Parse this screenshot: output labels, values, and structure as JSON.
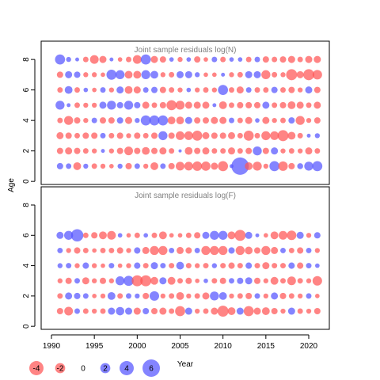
{
  "chart_data": {
    "type": "scatter",
    "ylabel": "Age",
    "xlabel": "Year",
    "x_ticks": [
      1990,
      1995,
      2000,
      2005,
      2010,
      2015,
      2020
    ],
    "xlim": [
      1988.8,
      2022.4
    ],
    "colors": {
      "positive": "#5555ff",
      "negative": "#ff5555"
    },
    "panels": [
      {
        "title": "Joint sample residuals log(N)",
        "ages": [
          1,
          2,
          3,
          4,
          5,
          6,
          7,
          8
        ],
        "y_ticks": [
          0,
          2,
          4,
          6,
          8
        ],
        "ylim": [
          -0.2,
          9.2
        ],
        "years": [
          1991,
          1992,
          1993,
          1994,
          1995,
          1996,
          1997,
          1998,
          1999,
          2000,
          2001,
          2002,
          2003,
          2004,
          2005,
          2006,
          2007,
          2008,
          2009,
          2010,
          2011,
          2012,
          2013,
          2014,
          2015,
          2016,
          2017,
          2018,
          2019,
          2020,
          2021
        ],
        "residuals": [
          [
            0.8,
            0.6,
            -1.2,
            0.5,
            -0.6,
            -0.5,
            -0.4,
            0.5,
            -0.8,
            0.6,
            -0.5,
            -1.2,
            0.6,
            -0.8,
            -1.5,
            -1.5,
            -1.8,
            -1.7,
            -1.0,
            -2.0,
            0.3,
            6.0,
            -1.2,
            -1.6,
            -0.5,
            2.0,
            -1.8,
            -0.8,
            0.7,
            1.6,
            2.0
          ],
          [
            -0.8,
            -1.0,
            -0.8,
            -0.6,
            -0.5,
            0.3,
            -0.5,
            -0.8,
            -1.5,
            -0.8,
            -1.2,
            -0.8,
            -1.0,
            -0.6,
            0.2,
            -1.2,
            -0.8,
            -1.0,
            -0.6,
            -0.6,
            -1.0,
            -0.6,
            -0.8,
            1.6,
            -0.8,
            1.0,
            -0.5,
            -0.6,
            -0.5,
            -1.0,
            -0.6
          ],
          [
            -1.0,
            -0.8,
            -0.6,
            -0.8,
            -0.8,
            0.6,
            -0.6,
            -0.8,
            -0.5,
            -0.8,
            -0.6,
            -0.8,
            1.6,
            -0.8,
            -1.5,
            -1.5,
            -2.0,
            -1.0,
            -0.8,
            -0.8,
            -1.0,
            -0.6,
            -2.0,
            -0.6,
            -1.6,
            -1.5,
            -2.4,
            -1.2,
            -0.6,
            0.3,
            0.5
          ],
          [
            -0.6,
            -1.6,
            -0.8,
            -0.5,
            0.6,
            -0.8,
            -0.8,
            0.8,
            -1.0,
            0.5,
            2.0,
            2.0,
            2.0,
            -1.2,
            -1.2,
            1.0,
            -0.8,
            -0.8,
            -1.0,
            -1.0,
            0.6,
            -0.6,
            -1.0,
            0.4,
            -1.0,
            -0.5,
            -0.6,
            0.8,
            -1.6,
            -0.5,
            -0.8
          ],
          [
            1.6,
            0.3,
            -0.6,
            -0.5,
            -0.5,
            1.0,
            1.6,
            0.8,
            1.6,
            0.8,
            -1.0,
            -0.6,
            -0.8,
            -2.0,
            -1.6,
            -1.0,
            -1.0,
            -1.0,
            0.3,
            -1.2,
            -0.6,
            -0.8,
            -0.8,
            -0.8,
            1.0,
            -0.6,
            -0.8,
            -1.2,
            -1.0,
            -0.6,
            -1.0
          ],
          [
            -0.6,
            1.2,
            -0.6,
            0.4,
            -0.4,
            0.6,
            -0.5,
            1.0,
            -1.2,
            -1.0,
            0.6,
            0.8,
            -0.8,
            -0.6,
            -0.5,
            0.4,
            -0.5,
            -0.6,
            -0.5,
            2.0,
            -0.6,
            -1.0,
            0.6,
            -0.6,
            -0.6,
            0.8,
            -0.6,
            -0.8,
            -0.5,
            1.0,
            -0.8
          ],
          [
            -0.8,
            1.0,
            0.8,
            -0.5,
            -0.5,
            -0.4,
            2.0,
            1.6,
            -1.2,
            -1.2,
            1.6,
            1.2,
            -0.5,
            -0.6,
            1.0,
            1.0,
            0.5,
            -0.4,
            -0.4,
            0.3,
            -0.5,
            -0.6,
            1.0,
            1.0,
            -1.6,
            -0.6,
            -0.5,
            -2.4,
            -1.0,
            -2.4,
            -1.8
          ],
          [
            2.0,
            0.5,
            0.3,
            -0.6,
            -1.5,
            -1.0,
            0.3,
            -0.4,
            -0.6,
            -1.5,
            2.0,
            -1.0,
            -0.8,
            0.4,
            -0.5,
            0.4,
            -0.8,
            -0.4,
            0.6,
            -0.6,
            0.4,
            0.4,
            -0.6,
            0.6,
            -0.8,
            -0.6,
            -0.8,
            -1.0,
            -0.6,
            -1.0,
            -1.0
          ]
        ]
      },
      {
        "title": "Joint sample residuals log(F)",
        "ages": [
          1,
          2,
          3,
          4,
          5,
          6
        ],
        "y_ticks": [
          0,
          2,
          4,
          6,
          8
        ],
        "ylim": [
          -0.2,
          9.2
        ],
        "years": [
          1991,
          1992,
          1993,
          1994,
          1995,
          1996,
          1997,
          1998,
          1999,
          2000,
          2001,
          2002,
          2003,
          2004,
          2005,
          2006,
          2007,
          2008,
          2009,
          2010,
          2011,
          2012,
          2013,
          2014,
          2015,
          2016,
          2017,
          2018,
          2019,
          2020,
          2021
        ],
        "residuals": [
          [
            -0.8,
            -1.5,
            0.6,
            -0.6,
            -0.5,
            -0.6,
            1.0,
            1.4,
            1.0,
            -1.0,
            0.8,
            -0.8,
            -1.0,
            -0.6,
            -2.0,
            1.0,
            -0.5,
            -0.6,
            -1.0,
            -2.4,
            -1.2,
            1.0,
            -2.0,
            -1.0,
            -1.2,
            -0.8,
            -0.5,
            1.0,
            -0.6,
            -0.5,
            -0.8
          ],
          [
            -0.6,
            1.0,
            0.8,
            0.6,
            -0.4,
            -0.5,
            1.2,
            -0.6,
            0.6,
            0.5,
            -0.8,
            1.8,
            -0.5,
            -0.6,
            -1.2,
            -0.5,
            -0.6,
            -1.0,
            1.6,
            1.2,
            -0.5,
            -0.6,
            -0.8,
            0.6,
            -0.5,
            1.0,
            -0.8,
            -0.6,
            -0.5,
            0.6,
            -0.4
          ],
          [
            -0.5,
            -0.8,
            0.6,
            -1.0,
            -0.5,
            -0.8,
            -0.5,
            1.6,
            2.0,
            -2.4,
            -2.4,
            -1.2,
            1.0,
            -1.2,
            -0.6,
            -0.8,
            -0.4,
            0.4,
            -0.6,
            -0.8,
            0.6,
            0.8,
            1.0,
            -0.8,
            -0.5,
            -1.2,
            -0.6,
            -1.5,
            -0.6,
            -0.5,
            -1.8
          ],
          [
            0.5,
            0.6,
            -0.5,
            0.8,
            -0.5,
            -0.4,
            0.6,
            -0.4,
            -0.5,
            0.8,
            -0.6,
            1.0,
            0.6,
            -0.6,
            1.2,
            -0.6,
            -0.5,
            -0.6,
            0.5,
            -0.6,
            -0.8,
            -0.6,
            0.8,
            -0.6,
            -1.0,
            -0.6,
            -0.6,
            0.8,
            -0.8,
            0.6,
            0.4
          ],
          [
            0.6,
            -0.5,
            -0.8,
            -0.6,
            -0.4,
            -0.6,
            -0.6,
            -0.8,
            -0.5,
            0.8,
            -1.0,
            -1.6,
            -1.6,
            0.6,
            -1.0,
            -0.8,
            0.6,
            -1.6,
            -1.6,
            -1.6,
            0.8,
            -1.6,
            -1.2,
            -0.8,
            -1.6,
            -1.0,
            0.6,
            -0.6,
            -0.8,
            0.6,
            -0.5
          ],
          [
            1.0,
            1.6,
            3.0,
            -0.6,
            -0.8,
            -1.2,
            -1.5,
            0.4,
            -0.4,
            -0.6,
            0.4,
            -0.6,
            -1.2,
            -0.4,
            -0.4,
            -0.6,
            -0.8,
            1.0,
            1.6,
            1.6,
            -1.2,
            -2.4,
            1.0,
            0.3,
            -0.4,
            -1.2,
            -1.5,
            -1.8,
            1.0,
            -0.5,
            0.8
          ]
        ]
      }
    ],
    "legend": [
      {
        "label": "-4",
        "value": -4
      },
      {
        "label": "-2",
        "value": -2
      },
      {
        "label": "0",
        "value": 0
      },
      {
        "label": "2",
        "value": 2
      },
      {
        "label": "4",
        "value": 4
      },
      {
        "label": "6",
        "value": 6
      }
    ]
  }
}
